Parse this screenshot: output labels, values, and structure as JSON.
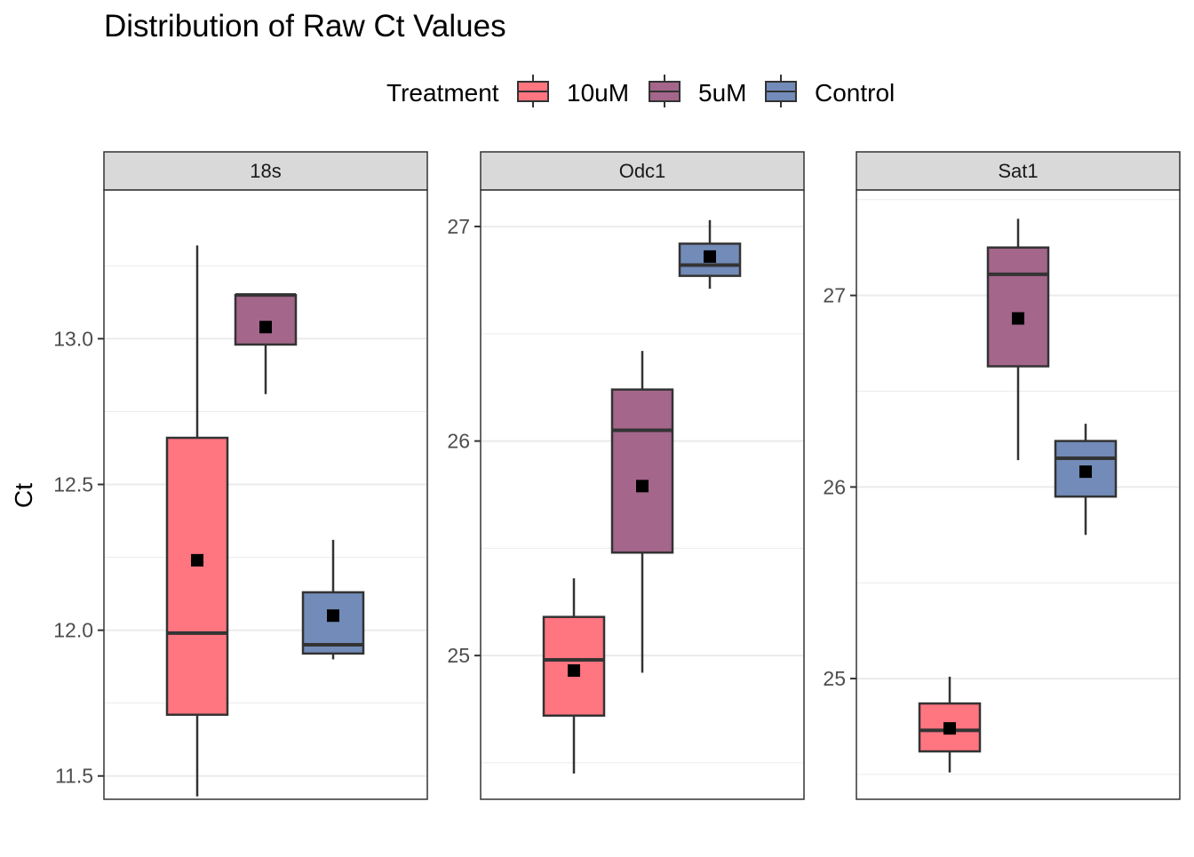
{
  "chart_data": {
    "type": "boxplot",
    "title": "Distribution of Raw Ct Values",
    "ylabel": "Ct",
    "legend": {
      "title": "Treatment",
      "position": "top",
      "entries": [
        {
          "name": "10uM",
          "color": "#ff7580"
        },
        {
          "name": "5uM",
          "color": "#a4668a"
        },
        {
          "name": "Control",
          "color": "#728bb8"
        }
      ]
    },
    "grid": true,
    "facets": [
      {
        "name": "18s",
        "ylim": [
          11.42,
          13.51
        ],
        "yticks": [
          11.5,
          12.0,
          12.5,
          13.0
        ],
        "ytick_labels": [
          "11.5",
          "12.0",
          "12.5",
          "13.0"
        ],
        "boxes": [
          {
            "group": "10uM",
            "min": 11.43,
            "q1": 11.71,
            "median": 11.99,
            "q3": 12.66,
            "max": 13.32,
            "mean": 12.24
          },
          {
            "group": "5uM",
            "min": 12.81,
            "q1": 12.98,
            "median": 13.15,
            "q3": 13.15,
            "max": 13.15,
            "mean": 13.04
          },
          {
            "group": "Control",
            "min": 11.9,
            "q1": 11.92,
            "median": 11.95,
            "q3": 12.13,
            "max": 12.31,
            "mean": 12.05
          }
        ]
      },
      {
        "name": "Odc1",
        "ylim": [
          24.33,
          27.17
        ],
        "yticks": [
          25,
          26,
          27
        ],
        "ytick_labels": [
          "25",
          "26",
          "27"
        ],
        "boxes": [
          {
            "group": "10uM",
            "min": 24.45,
            "q1": 24.72,
            "median": 24.98,
            "q3": 25.18,
            "max": 25.36,
            "mean": 24.93
          },
          {
            "group": "5uM",
            "min": 24.92,
            "q1": 25.48,
            "median": 26.05,
            "q3": 26.24,
            "max": 26.42,
            "mean": 25.79
          },
          {
            "group": "Control",
            "min": 26.71,
            "q1": 26.77,
            "median": 26.82,
            "q3": 26.92,
            "max": 27.03,
            "mean": 26.86
          }
        ]
      },
      {
        "name": "Sat1",
        "ylim": [
          24.37,
          27.55
        ],
        "yticks": [
          25,
          26,
          27
        ],
        "ytick_labels": [
          "25",
          "26",
          "27"
        ],
        "boxes": [
          {
            "group": "10uM",
            "min": 24.51,
            "q1": 24.62,
            "median": 24.73,
            "q3": 24.87,
            "max": 25.01,
            "mean": 24.74
          },
          {
            "group": "5uM",
            "min": 26.14,
            "q1": 26.63,
            "median": 27.11,
            "q3": 27.25,
            "max": 27.4,
            "mean": 26.88
          },
          {
            "group": "Control",
            "min": 25.75,
            "q1": 25.95,
            "median": 26.15,
            "q3": 26.24,
            "max": 26.33,
            "mean": 26.08
          }
        ]
      }
    ]
  }
}
